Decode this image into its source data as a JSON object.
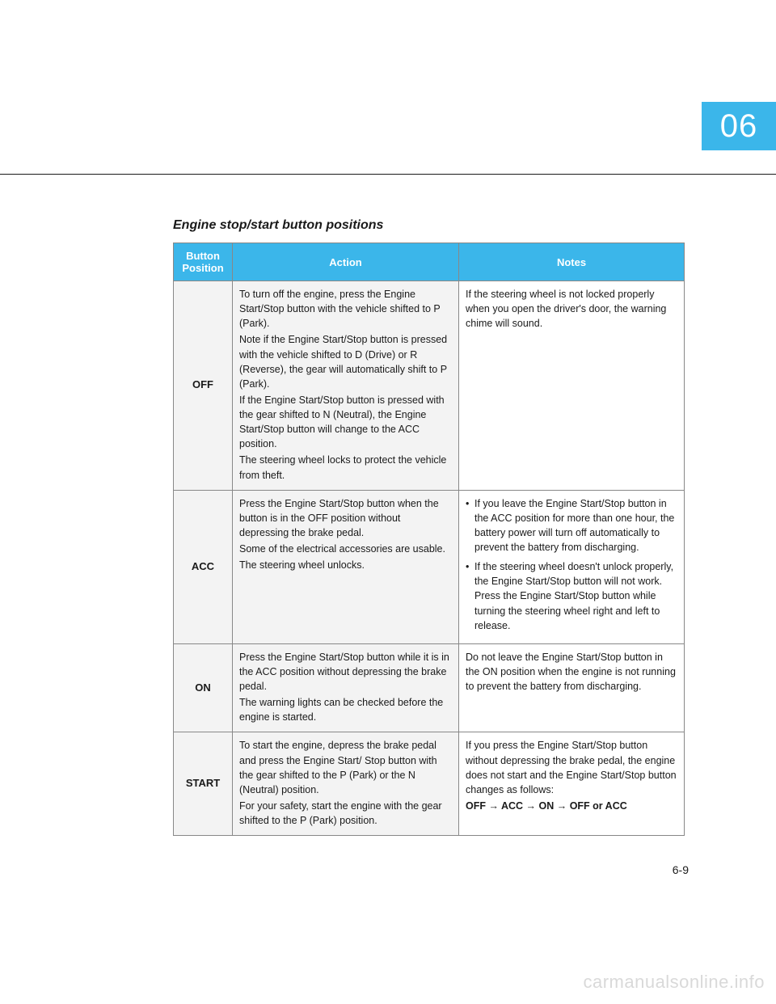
{
  "chapter_badge": "06",
  "section_title": "Engine stop/start button positions",
  "page_number": "6-9",
  "watermark": "carmanualsonline.info",
  "colors": {
    "accent": "#3bb6ea",
    "text": "#1a1a1a",
    "row_shade": "#f3f3f3",
    "border": "#888888",
    "watermark": "#d9d9d9",
    "background": "#ffffff"
  },
  "table": {
    "headers": {
      "col1_line1": "Button",
      "col1_line2": "Position",
      "col2": "Action",
      "col3": "Notes"
    },
    "rows": [
      {
        "position": "OFF",
        "action_p1": "To turn off the engine, press the Engine Start/Stop button with the vehicle shifted to P (Park).",
        "action_p2": "Note if the Engine Start/Stop button is pressed with the vehicle shifted to D (Drive) or R (Reverse), the gear will automatically shift to P (Park).",
        "action_p3": "If the Engine Start/Stop button is pressed with the gear shifted to N (Neutral), the Engine Start/Stop button will change to the ACC position.",
        "action_p4": "The steering wheel locks to protect the vehicle from theft.",
        "notes_p1": "If the steering wheel is not locked properly when you open the driver's door, the warning chime will sound."
      },
      {
        "position": "ACC",
        "action_p1": "Press the Engine Start/Stop button when the button is in the OFF position without depressing the brake pedal.",
        "action_p2": "Some of the electrical accessories are usable.",
        "action_p3": "The steering wheel unlocks.",
        "notes_li1": "If you leave the Engine Start/Stop button in the ACC position for more than one hour, the battery power will turn off automatically to prevent the battery from discharging.",
        "notes_li2": "If the steering wheel doesn't unlock properly, the Engine Start/Stop button will not work. Press the Engine Start/Stop button while turning the steering wheel right and left to release."
      },
      {
        "position": "ON",
        "action_p1": "Press the Engine Start/Stop button while it is in the ACC position without depressing the brake pedal.",
        "action_p2": "The warning lights can be checked before the engine is started.",
        "notes_p1": "Do not leave the Engine Start/Stop button in the ON position when the engine is not running to prevent the battery from discharging."
      },
      {
        "position": "START",
        "action_p1": "To start the engine, depress the brake pedal and press the Engine Start/ Stop button with the gear shifted to the P (Park) or the N (Neutral) position.",
        "action_p2": "For your safety, start the engine with the gear shifted to the P (Park) position.",
        "notes_p1": "If you press the Engine Start/Stop button without depressing the brake pedal, the engine does not start and the Engine Start/Stop button changes as follows:",
        "notes_seq": "OFF → ACC → ON → OFF or ACC"
      }
    ]
  }
}
